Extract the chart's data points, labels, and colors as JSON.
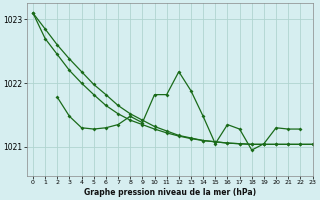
{
  "title": "Graphe pression niveau de la mer (hPa)",
  "bg_color": "#d6eef0",
  "grid_color": "#b0d4d0",
  "line_color": "#1a6b1a",
  "xlim": [
    -0.5,
    23
  ],
  "ylim": [
    1020.55,
    1023.25
  ],
  "yticks": [
    1021,
    1022,
    1023
  ],
  "xticks": [
    0,
    1,
    2,
    3,
    4,
    5,
    6,
    7,
    8,
    9,
    10,
    11,
    12,
    13,
    14,
    15,
    16,
    17,
    18,
    19,
    20,
    21,
    22,
    23
  ],
  "s1": [
    1023.1,
    1022.85,
    1022.6,
    1022.38,
    1022.18,
    1021.98,
    1021.82,
    1021.65,
    1021.52,
    1021.42,
    1021.32,
    1021.25,
    1021.18,
    1021.14,
    1021.1,
    1021.08,
    1021.06,
    1021.05,
    1021.04,
    1021.04,
    1021.04,
    1021.04,
    1021.04,
    1021.04
  ],
  "s2": [
    1023.1,
    1022.7,
    1022.45,
    1022.2,
    1022.0,
    1021.82,
    1021.65,
    1021.52,
    1021.42,
    1021.35,
    1021.28,
    1021.22,
    1021.17,
    1021.13,
    1021.1,
    1021.08,
    1021.06,
    1021.05,
    1021.04,
    1021.04,
    1021.04,
    1021.04,
    1021.04,
    1021.04
  ],
  "s3_x": [
    2,
    3,
    4,
    5,
    6,
    7,
    8,
    9,
    10,
    11,
    12,
    13,
    14,
    15,
    16,
    17,
    18,
    19,
    20,
    21,
    22
  ],
  "s3": [
    1021.78,
    1021.48,
    1021.3,
    1021.28,
    1021.3,
    1021.35,
    1021.48,
    1021.38,
    1021.82,
    1021.82,
    1022.18,
    1021.88,
    1021.48,
    1021.05,
    1021.35,
    1021.28,
    1020.95,
    1021.05,
    1021.3,
    1021.28,
    1021.28
  ]
}
